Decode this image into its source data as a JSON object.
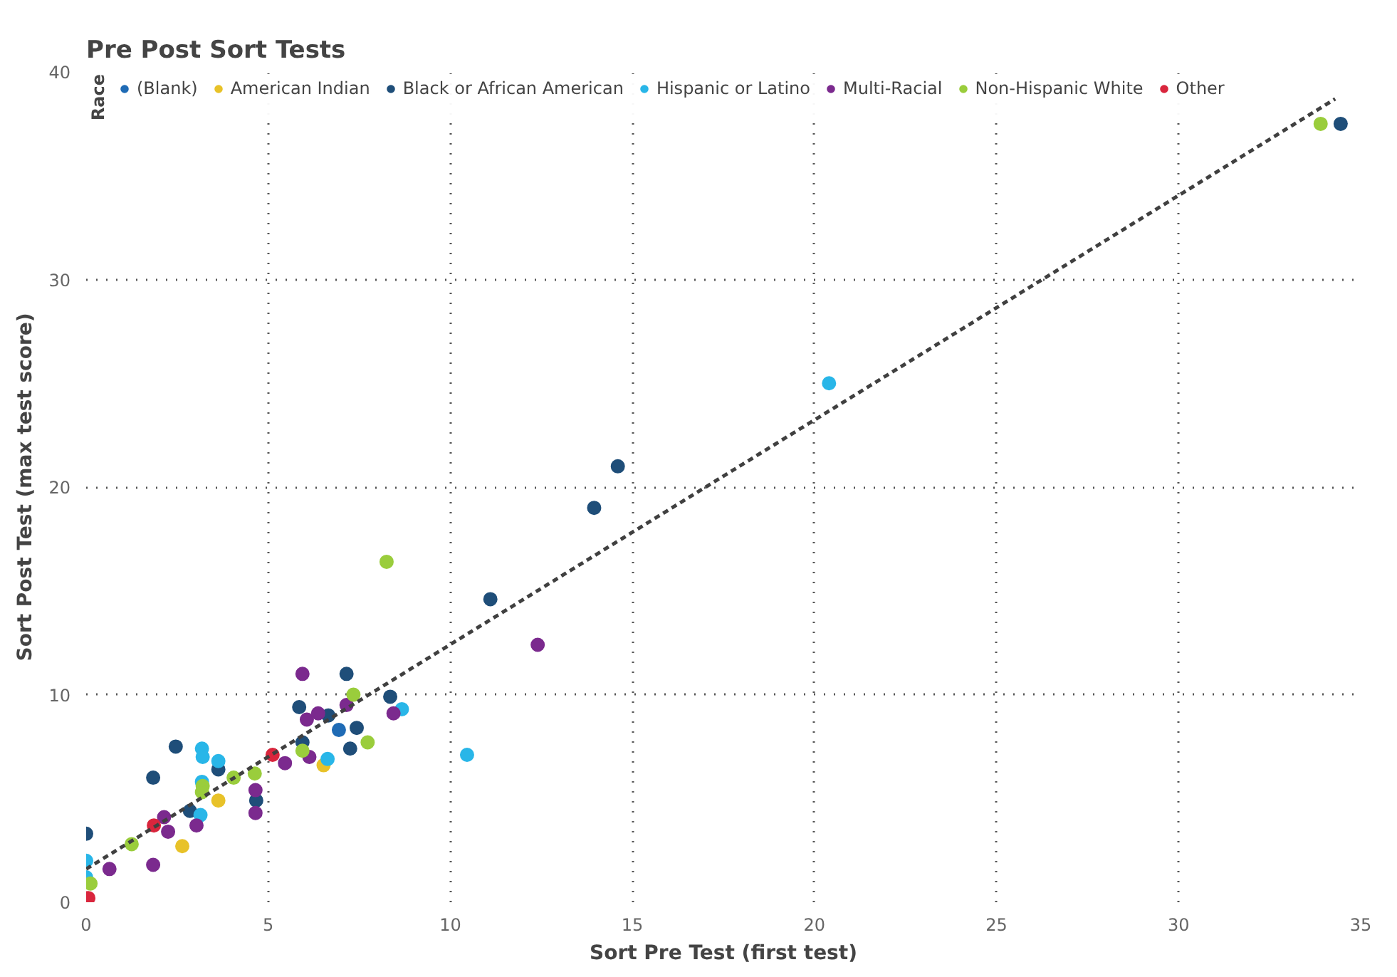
{
  "chart_data": {
    "type": "scatter",
    "title": "Pre Post Sort Tests",
    "xlabel": "Sort Pre Test (first test)",
    "ylabel": "Sort Post Test (max test score)",
    "legend_title": "Race",
    "xlim": [
      0,
      35
    ],
    "ylim": [
      0,
      40
    ],
    "xticks": [
      0,
      5,
      10,
      15,
      20,
      25,
      30,
      35
    ],
    "yticks": [
      0,
      10,
      20,
      30,
      40
    ],
    "grid": true,
    "legend": "top",
    "marker": "circle",
    "series": [
      {
        "name": "(Blank)",
        "color": "#1f6bb5",
        "x": [
          6.94
        ],
        "values": [
          8.3
        ]
      },
      {
        "name": "American Indian",
        "color": "#e8c229",
        "x": [
          6.52,
          3.63,
          2.64
        ],
        "values": [
          6.6,
          4.9,
          2.7
        ]
      },
      {
        "name": "Black or African American",
        "color": "#1f4e79",
        "x": [
          0,
          1.84,
          2.46,
          2.85,
          3.63,
          4.67,
          5.85,
          5.94,
          6.65,
          7.15,
          7.43,
          7.25,
          8.35,
          11.1,
          13.95,
          14.6,
          34.45
        ],
        "values": [
          3.3,
          6.0,
          7.5,
          4.4,
          6.4,
          4.9,
          9.4,
          7.7,
          9.0,
          11.0,
          8.4,
          7.4,
          9.9,
          14.6,
          19.0,
          21.0,
          37.5
        ]
      },
      {
        "name": "Hispanic or Latino",
        "color": "#29b6e8",
        "x": [
          0,
          0,
          3.14,
          3.18,
          3.2,
          3.63,
          3.18,
          6.63,
          8.67,
          10.46,
          20.4
        ],
        "values": [
          2.0,
          1.2,
          4.2,
          7.4,
          7.0,
          6.8,
          5.8,
          6.9,
          9.3,
          7.1,
          25.0
        ]
      },
      {
        "name": "Multi-Racial",
        "color": "#7b2a8e",
        "x": [
          0.64,
          1.84,
          2.14,
          2.25,
          3.03,
          4.65,
          4.65,
          5.46,
          5.94,
          6.06,
          6.13,
          6.37,
          7.15,
          8.44,
          12.4
        ],
        "values": [
          1.6,
          1.8,
          4.1,
          3.4,
          3.7,
          5.4,
          4.3,
          6.7,
          11.0,
          8.8,
          7.0,
          9.1,
          9.5,
          9.1,
          12.4
        ]
      },
      {
        "name": "Non-Hispanic White",
        "color": "#9acd3c",
        "x": [
          0.12,
          1.25,
          3.2,
          3.18,
          4.05,
          4.63,
          5.94,
          7.34,
          7.73,
          8.25,
          33.9
        ],
        "values": [
          0.9,
          2.8,
          5.6,
          5.3,
          6.0,
          6.2,
          7.3,
          10.0,
          7.7,
          16.4,
          37.5
        ]
      },
      {
        "name": "Other",
        "color": "#d9263d",
        "x": [
          0.06,
          1.86,
          5.12
        ],
        "values": [
          0.2,
          3.7,
          7.1
        ]
      },
      {
        "type": "line",
        "color": "#404040",
        "line_style": "dashed",
        "marker": "none",
        "x": [
          0,
          34.3
        ],
        "values": [
          1.6,
          38.7
        ]
      }
    ]
  }
}
